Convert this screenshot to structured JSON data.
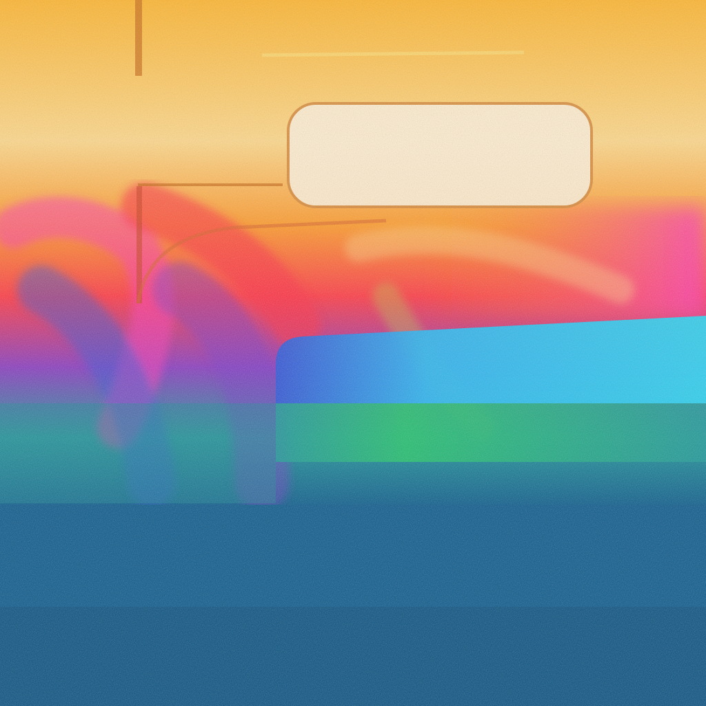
{
  "artwork": {
    "palette": {
      "amber": "#ffb62e",
      "pale-yellow": "#ffd98a",
      "cream": "#fff0d6",
      "orange": "#ff8a1e",
      "red": "#ff2f45",
      "magenta": "#ff3cb4",
      "violet": "#7a3cc8",
      "royal-blue": "#2f56d8",
      "cyan": "#29d6f2",
      "green": "#22c46a",
      "teal": "#1f9a9a",
      "navy": "#0b5a8c",
      "deep-navy": "#094a78"
    }
  }
}
